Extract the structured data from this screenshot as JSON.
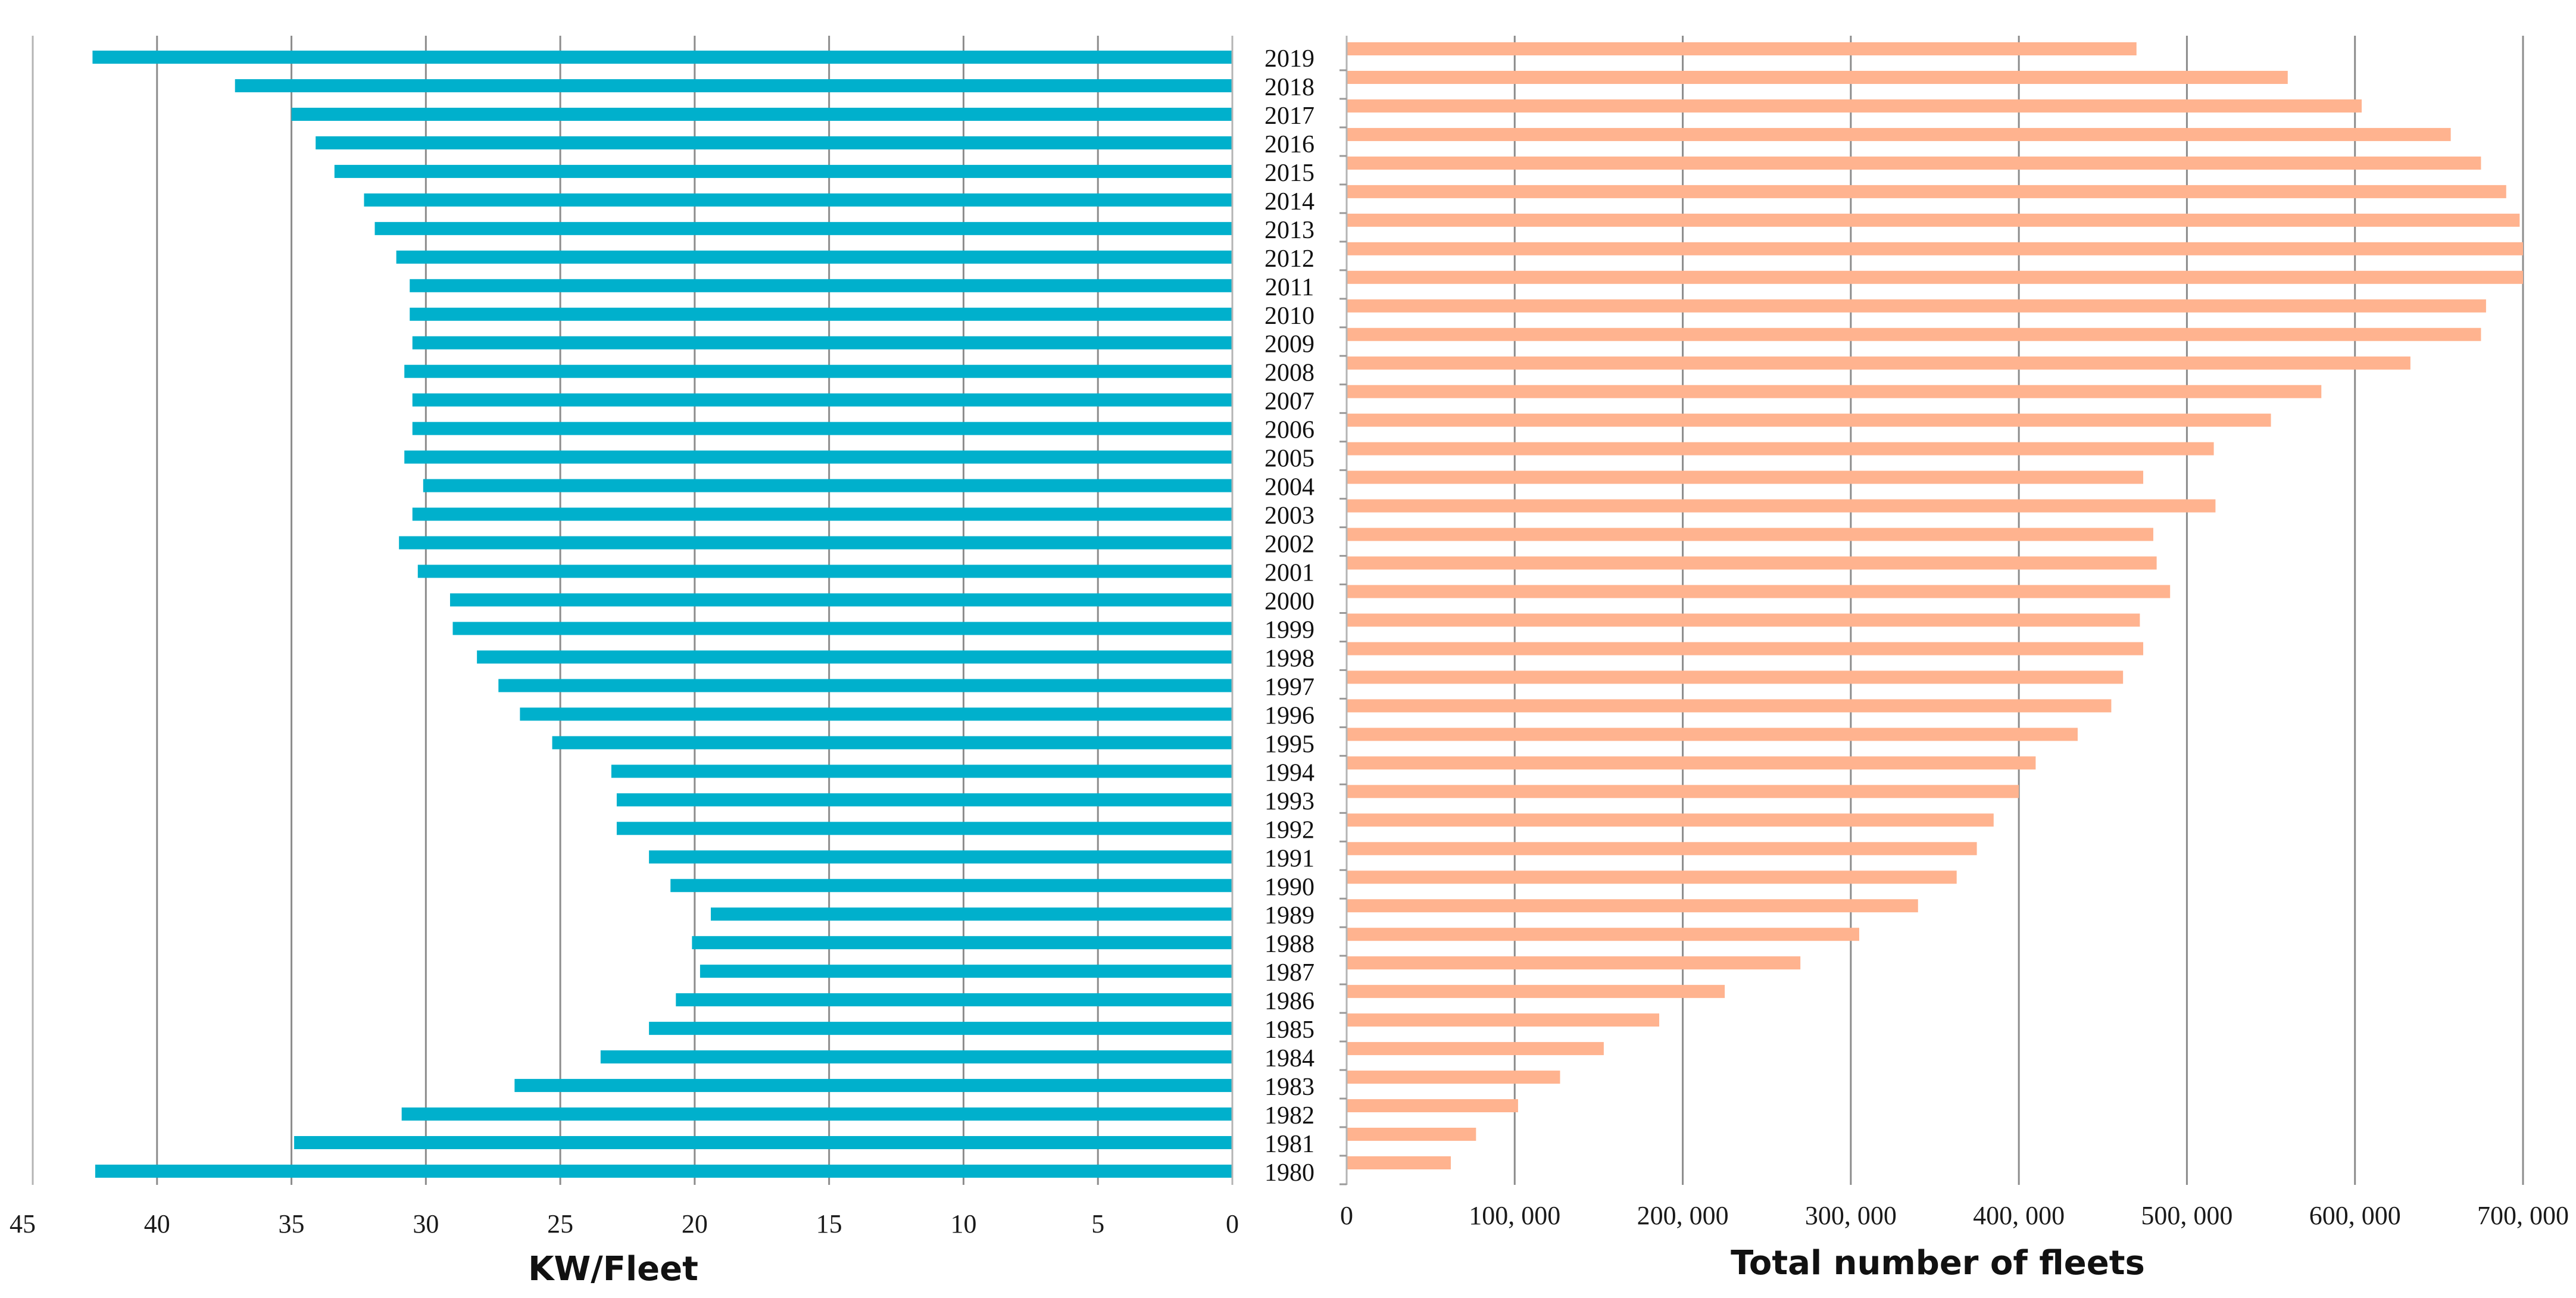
{
  "chart_data": [
    {
      "type": "bar",
      "orientation": "horizontal",
      "direction": "right-to-left",
      "xlabel": "KW/Fleet",
      "xlim": [
        0,
        45
      ],
      "x_ticks": [
        0,
        5,
        10,
        15,
        20,
        25,
        30,
        35,
        40,
        45
      ],
      "x_tick_labels": [
        "0",
        "5",
        "10",
        "15",
        "20",
        "25",
        "30",
        "35",
        "40",
        "45"
      ],
      "grid": true,
      "color": "#00B0CC",
      "categories": [
        "1980",
        "1981",
        "1982",
        "1983",
        "1984",
        "1985",
        "1986",
        "1987",
        "1988",
        "1989",
        "1990",
        "1991",
        "1992",
        "1993",
        "1994",
        "1995",
        "1996",
        "1997",
        "1998",
        "1999",
        "2000",
        "2001",
        "2002",
        "2003",
        "2004",
        "2005",
        "2006",
        "2007",
        "2008",
        "2009",
        "2010",
        "2011",
        "2012",
        "2013",
        "2014",
        "2015",
        "2016",
        "2017",
        "2018",
        "2019"
      ],
      "values": [
        42.3,
        34.9,
        30.9,
        26.7,
        23.5,
        21.7,
        20.7,
        19.8,
        20.1,
        19.4,
        20.9,
        21.7,
        22.9,
        22.9,
        23.1,
        25.3,
        26.5,
        27.3,
        28.1,
        29.0,
        29.1,
        30.3,
        31.0,
        30.5,
        30.1,
        30.8,
        30.5,
        30.5,
        30.8,
        30.5,
        30.6,
        30.6,
        31.1,
        31.9,
        32.3,
        33.4,
        34.1,
        35.0,
        37.1,
        42.4
      ]
    },
    {
      "type": "bar",
      "orientation": "horizontal",
      "xlabel": "Total number of fleets",
      "xlim": [
        0,
        700000
      ],
      "x_ticks": [
        0,
        100000,
        200000,
        300000,
        400000,
        500000,
        600000,
        700000
      ],
      "x_tick_labels": [
        "0",
        "100, 000",
        "200, 000",
        "300, 000",
        "400, 000",
        "500, 000",
        "600, 000",
        "700, 000"
      ],
      "grid": true,
      "color": "#FFB38F",
      "categories": [
        "1980",
        "1981",
        "1982",
        "1983",
        "1984",
        "1985",
        "1986",
        "1987",
        "1988",
        "1989",
        "1990",
        "1991",
        "1992",
        "1993",
        "1994",
        "1995",
        "1996",
        "1997",
        "1998",
        "1999",
        "2000",
        "2001",
        "2002",
        "2003",
        "2004",
        "2005",
        "2006",
        "2007",
        "2008",
        "2009",
        "2010",
        "2011",
        "2012",
        "2013",
        "2014",
        "2015",
        "2016",
        "2017",
        "2018",
        "2019"
      ],
      "values": [
        62000,
        77000,
        102000,
        127000,
        153000,
        186000,
        225000,
        270000,
        305000,
        340000,
        363000,
        375000,
        385000,
        400000,
        410000,
        435000,
        455000,
        462000,
        474000,
        472000,
        490000,
        482000,
        480000,
        517000,
        474000,
        516000,
        550000,
        580000,
        633000,
        675000,
        678000,
        700000,
        700000,
        698000,
        690000,
        675000,
        657000,
        604000,
        560000,
        470000
      ]
    }
  ]
}
